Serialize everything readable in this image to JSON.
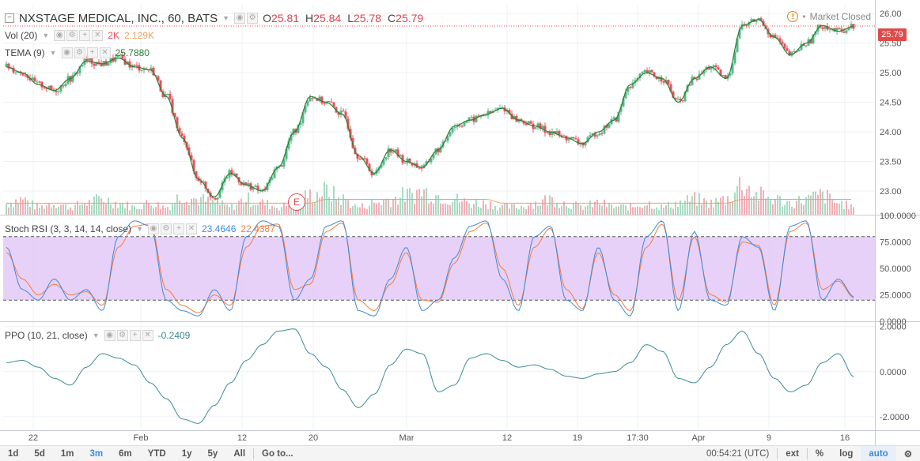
{
  "header": {
    "collapse_glyph": "−",
    "title": "NXSTAGE MEDICAL, INC., 60, BATS",
    "ohlc": [
      {
        "k": "O",
        "v": "25.81"
      },
      {
        "k": "H",
        "v": "25.84"
      },
      {
        "k": "L",
        "v": "25.78"
      },
      {
        "k": "C",
        "v": "25.79"
      }
    ],
    "market_status": "Market Closed",
    "warn_glyph": "!"
  },
  "indicators": {
    "vol": {
      "label": "Vol (20)",
      "value1": "2K",
      "value2": "2.129K"
    },
    "tema": {
      "label": "TEMA (9)",
      "value": "25.7880"
    },
    "stoch": {
      "label": "Stoch RSI (3, 3, 14, 14, close)",
      "k_value": "23.4646",
      "d_value": "22.4387"
    },
    "ppo": {
      "label": "PPO (10, 21, close)",
      "value": "-0.2409"
    }
  },
  "price_axis": {
    "ticks": [
      "26.00",
      "25.50",
      "25.00",
      "24.50",
      "24.00",
      "23.50",
      "23.00"
    ],
    "last_price": "25.79"
  },
  "stoch_axis": {
    "ticks": [
      "100.0000",
      "75.0000",
      "50.0000",
      "25.0000",
      "0.0000"
    ]
  },
  "ppo_axis": {
    "ticks": [
      "2.0000",
      "0.0000",
      "-2.0000"
    ]
  },
  "time_axis": {
    "ticks": [
      "22",
      "Feb",
      "12",
      "20",
      "Mar",
      "12",
      "19",
      "17:30",
      "Apr",
      "9",
      "16"
    ]
  },
  "earnings_marker": "E",
  "bottom_bar": {
    "ranges": [
      "1d",
      "5d",
      "1m",
      "3m",
      "6m",
      "YTD",
      "1y",
      "5y",
      "All"
    ],
    "active_range": "3m",
    "goto": "Go to...",
    "time": "00:54:21 (UTC)",
    "ext": "ext",
    "percent": "%",
    "log": "log",
    "auto": "auto",
    "settings_glyph": "⚙"
  },
  "colors": {
    "up": "#53b987",
    "down": "#eb4d5c",
    "tema": "#2e7d32",
    "stoch_k": "#3d8bd9",
    "stoch_d": "#f57c3c",
    "stoch_band": "#e4c9f7",
    "ppo": "#3a8c94",
    "vol_up": "#a8dcc3",
    "vol_down": "#f2b0b6",
    "vol_ma": "#f0a05a",
    "last_price": "#e04a4a"
  },
  "chart_data": [
    {
      "type": "candlestick",
      "title": "NXSTAGE MEDICAL, INC., 60, BATS",
      "xlabel": "",
      "ylabel": "",
      "ylim": [
        22.6,
        26.15
      ],
      "x_ticks": [
        "22",
        "Feb",
        "12",
        "20",
        "Mar",
        "12",
        "19",
        "17:30",
        "Apr",
        "9",
        "16"
      ],
      "close": [
        25.1,
        25.0,
        24.8,
        24.7,
        24.9,
        25.2,
        25.15,
        25.25,
        25.1,
        25.05,
        24.6,
        23.9,
        23.2,
        22.9,
        23.3,
        23.1,
        23.0,
        23.4,
        24.0,
        24.6,
        24.5,
        24.3,
        23.6,
        23.3,
        23.7,
        23.5,
        23.4,
        23.7,
        24.1,
        24.2,
        24.3,
        24.4,
        24.2,
        24.1,
        24.0,
        23.9,
        23.8,
        24.0,
        24.2,
        24.8,
        25.0,
        24.9,
        24.5,
        24.9,
        25.1,
        24.9,
        25.8,
        25.9,
        25.6,
        25.3,
        25.5,
        25.8,
        25.7,
        25.79
      ],
      "tema": [
        25.1,
        25.0,
        24.8,
        24.7,
        24.9,
        25.2,
        25.15,
        25.25,
        25.1,
        25.05,
        24.6,
        23.9,
        23.2,
        22.9,
        23.3,
        23.1,
        23.0,
        23.4,
        24.0,
        24.6,
        24.5,
        24.3,
        23.6,
        23.3,
        23.7,
        23.5,
        23.4,
        23.7,
        24.1,
        24.2,
        24.3,
        24.4,
        24.2,
        24.1,
        24.0,
        23.9,
        23.8,
        24.0,
        24.2,
        24.8,
        25.0,
        24.9,
        24.5,
        24.9,
        25.1,
        24.9,
        25.8,
        25.9,
        25.6,
        25.3,
        25.5,
        25.8,
        25.7,
        25.79
      ]
    },
    {
      "type": "bar",
      "title": "Vol (20)",
      "values": [
        3,
        4,
        2,
        3,
        2,
        3,
        4,
        3,
        2,
        3,
        2,
        5,
        4,
        3,
        2,
        4,
        3,
        2,
        3,
        5,
        6,
        4,
        2,
        3,
        4,
        5,
        6,
        5,
        4,
        3,
        3,
        2,
        2,
        3,
        4,
        3,
        2,
        3,
        2,
        2,
        3,
        2,
        3,
        4,
        3,
        4,
        8,
        5,
        4,
        3,
        4,
        5,
        3,
        2
      ],
      "ma": [
        3,
        3,
        3,
        3,
        3,
        3,
        3,
        3,
        3,
        3,
        3,
        3,
        3,
        3,
        3,
        3,
        3,
        3,
        3,
        3,
        4,
        4,
        4,
        4,
        4,
        4,
        4,
        4,
        4,
        4,
        4,
        3,
        3,
        3,
        3,
        3,
        3,
        3,
        3,
        3,
        3,
        3,
        3,
        3,
        3,
        3,
        4,
        4,
        4,
        4,
        4,
        4,
        4,
        4
      ]
    },
    {
      "type": "line",
      "title": "Stoch RSI (3, 3, 14, 14, close)",
      "ylim": [
        0,
        100
      ],
      "series": [
        {
          "name": "K",
          "values": [
            70,
            30,
            20,
            40,
            20,
            30,
            10,
            80,
            95,
            90,
            20,
            10,
            5,
            30,
            10,
            80,
            95,
            90,
            20,
            40,
            90,
            95,
            10,
            5,
            40,
            70,
            10,
            20,
            60,
            90,
            95,
            40,
            10,
            80,
            90,
            20,
            10,
            70,
            20,
            5,
            80,
            95,
            10,
            85,
            20,
            15,
            80,
            70,
            10,
            90,
            95,
            20,
            40,
            23
          ]
        },
        {
          "name": "D",
          "values": [
            65,
            40,
            25,
            35,
            25,
            28,
            15,
            70,
            90,
            92,
            30,
            15,
            8,
            25,
            15,
            70,
            90,
            92,
            30,
            35,
            85,
            93,
            20,
            10,
            35,
            65,
            20,
            18,
            55,
            85,
            93,
            50,
            15,
            70,
            88,
            30,
            12,
            65,
            25,
            10,
            70,
            92,
            20,
            80,
            25,
            18,
            75,
            72,
            15,
            85,
            93,
            30,
            38,
            22
          ]
        }
      ]
    },
    {
      "type": "line",
      "title": "PPO (10, 21, close)",
      "ylim": [
        -2.6,
        2.2
      ],
      "series": [
        {
          "name": "PPO",
          "values": [
            0.4,
            0.5,
            0.2,
            -0.3,
            -0.6,
            0.2,
            0.8,
            0.6,
            0.3,
            -0.5,
            -1.2,
            -2.1,
            -2.3,
            -1.5,
            -0.5,
            0.5,
            1.2,
            1.8,
            1.9,
            0.8,
            0.2,
            -0.8,
            -1.6,
            -1.0,
            0.3,
            1.0,
            0.8,
            -0.9,
            -0.6,
            0.6,
            0.8,
            0.5,
            0.2,
            0.3,
            0.1,
            -0.2,
            -0.3,
            -0.1,
            0.0,
            0.4,
            1.2,
            0.9,
            -0.3,
            -0.5,
            0.2,
            1.2,
            1.8,
            0.8,
            -0.3,
            -0.9,
            -0.6,
            0.4,
            0.8,
            -0.24
          ]
        }
      ]
    }
  ]
}
